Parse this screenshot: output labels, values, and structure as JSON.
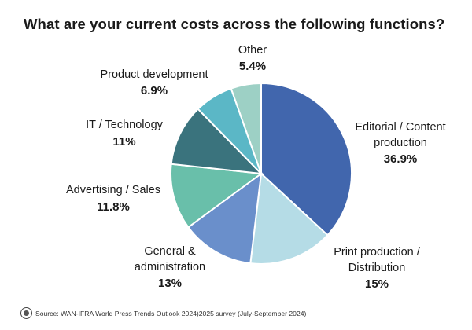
{
  "chart_data": {
    "type": "pie",
    "title": "What are your current costs across the following functions?",
    "slices": [
      {
        "label": [
          "Editorial / Content",
          "production"
        ],
        "value": 36.9,
        "value_label": "36.9%",
        "color": "#4166ad"
      },
      {
        "label": [
          "Print production /",
          "Distribution"
        ],
        "value": 15,
        "value_label": "15%",
        "color": "#b5dce6"
      },
      {
        "label": [
          "General &",
          "administration"
        ],
        "value": 13,
        "value_label": "13%",
        "color": "#6a8fcb"
      },
      {
        "label": [
          "Advertising / Sales"
        ],
        "value": 11.8,
        "value_label": "11.8%",
        "color": "#69bfaa"
      },
      {
        "label": [
          "IT / Technology"
        ],
        "value": 11,
        "value_label": "11%",
        "color": "#3a737d"
      },
      {
        "label": [
          "Product development"
        ],
        "value": 6.9,
        "value_label": "6.9%",
        "color": "#5bb7c6"
      },
      {
        "label": [
          "Other"
        ],
        "value": 5.4,
        "value_label": "5.4%",
        "color": "#9dd0c5"
      }
    ]
  },
  "footer": {
    "source": "Source: WAN-IFRA World Press Trends Outlook 2024)2025 survey (July-September 2024)"
  }
}
